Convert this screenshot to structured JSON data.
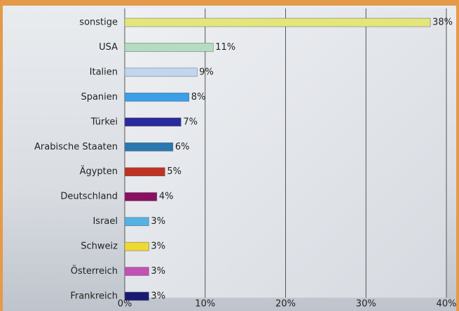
{
  "chart_data": {
    "type": "bar",
    "orientation": "horizontal",
    "categories": [
      "sonstige",
      "USA",
      "Italien",
      "Spanien",
      "Türkei",
      "Arabische Staaten",
      "Ägypten",
      "Deutschland",
      "Israel",
      "Schweiz",
      "Österreich",
      "Frankreich"
    ],
    "values": [
      38,
      11,
      9,
      8,
      7,
      6,
      5,
      4,
      3,
      3,
      3,
      3
    ],
    "value_labels": [
      "38%",
      "11%",
      "9%",
      "8%",
      "7%",
      "6%",
      "5%",
      "4%",
      "3%",
      "3%",
      "3%",
      "3%"
    ],
    "colors": [
      "#e4e67a",
      "#b4dcc0",
      "#c2d6f0",
      "#3a9ee8",
      "#2a2a9c",
      "#2a78b0",
      "#c03222",
      "#8a1062",
      "#52b2e4",
      "#f0d832",
      "#c450b4",
      "#1a1a72"
    ],
    "xlim": [
      0,
      40
    ],
    "xticks": [
      {
        "value": 0,
        "label": "0%"
      },
      {
        "value": 10,
        "label": "10%"
      },
      {
        "value": 20,
        "label": "20%"
      },
      {
        "value": 30,
        "label": "30%"
      },
      {
        "value": 40,
        "label": "40%"
      }
    ],
    "grid": true
  }
}
